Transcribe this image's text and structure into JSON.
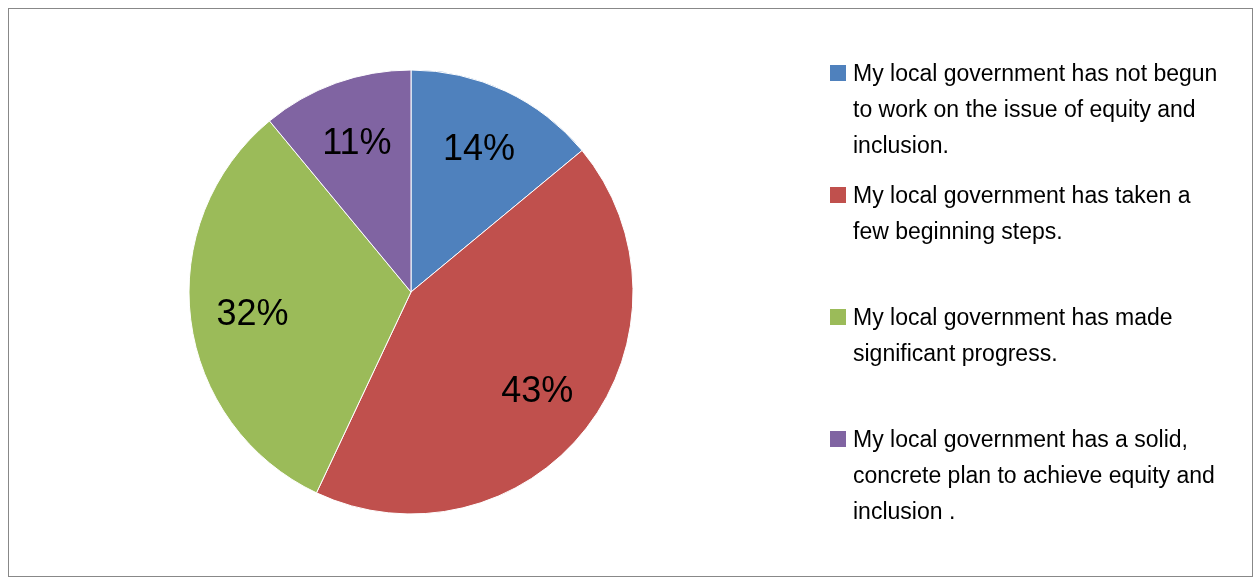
{
  "chart_data": {
    "type": "pie",
    "categories": [
      "My local government has not begun to work on the issue of equity and inclusion.",
      "My local government has taken a few beginning steps.",
      "My local government has made significant progress.",
      "My local government has a solid, concrete plan to achieve equity and inclusion ."
    ],
    "values": [
      14,
      43,
      32,
      11
    ],
    "value_labels": [
      "14%",
      "43%",
      "32%",
      "11%"
    ],
    "colors": [
      "#4f81bd",
      "#c0504d",
      "#9bbb59",
      "#8064a2"
    ],
    "legend": "right"
  }
}
